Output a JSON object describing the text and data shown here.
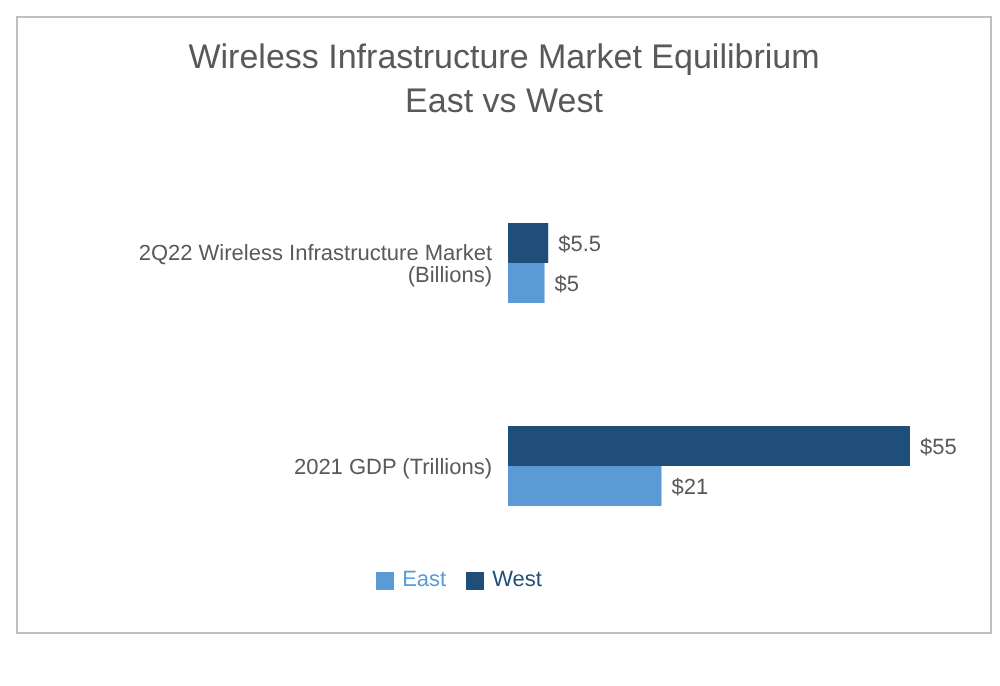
{
  "chart_data": {
    "type": "bar",
    "orientation": "horizontal",
    "title": "Wireless Infrastructure Market Equilibrium",
    "subtitle": "East vs West",
    "categories": [
      "2Q22 Wireless Infrastructure Market (Billions)",
      "2021 GDP (Trillions)"
    ],
    "series": [
      {
        "name": "West",
        "color": "#1f4e79",
        "values": [
          5.5,
          55
        ],
        "value_labels": [
          "$5.5",
          "$55"
        ]
      },
      {
        "name": "East",
        "color": "#5b9bd5",
        "values": [
          5,
          21
        ],
        "value_labels": [
          "$5",
          "$21"
        ]
      }
    ],
    "legend": "bottom",
    "grid": false
  }
}
